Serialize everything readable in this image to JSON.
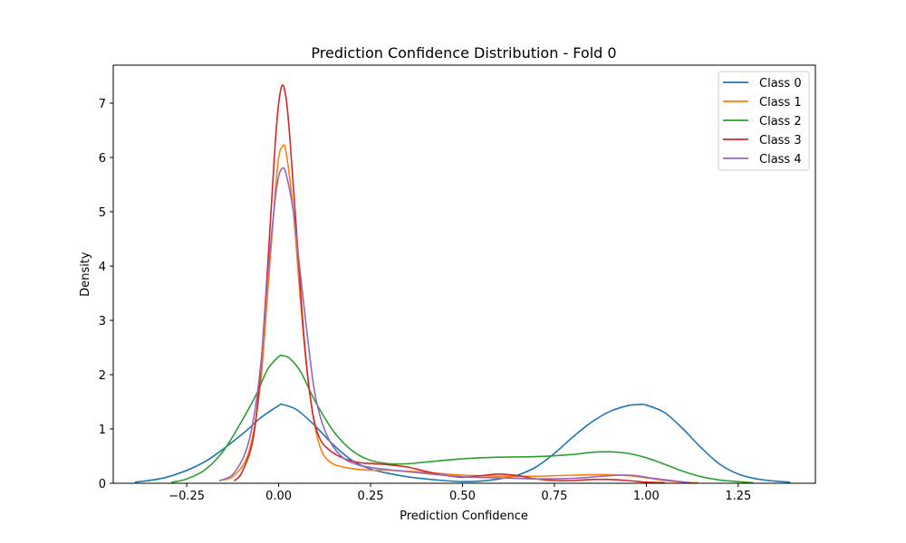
{
  "chart_data": {
    "type": "line",
    "title": "Prediction Confidence Distribution - Fold 0",
    "xlabel": "Prediction Confidence",
    "ylabel": "Density",
    "xlim": [
      -0.45,
      1.46
    ],
    "ylim": [
      0,
      7.7
    ],
    "xticks": [
      -0.25,
      0.0,
      0.25,
      0.5,
      0.75,
      1.0,
      1.25
    ],
    "xtick_labels": [
      "−0.25",
      "0.00",
      "0.25",
      "0.50",
      "0.75",
      "1.00",
      "1.25"
    ],
    "yticks": [
      0,
      1,
      2,
      3,
      4,
      5,
      6,
      7
    ],
    "ytick_labels": [
      "0",
      "1",
      "2",
      "3",
      "4",
      "5",
      "6",
      "7"
    ],
    "grid": false,
    "legend_position": "top-right",
    "series": [
      {
        "name": "Class 0",
        "color": "#1f77b4",
        "points": [
          [
            -0.39,
            0.02
          ],
          [
            -0.3,
            0.12
          ],
          [
            -0.2,
            0.4
          ],
          [
            -0.1,
            0.9
          ],
          [
            -0.05,
            1.2
          ],
          [
            0.0,
            1.43
          ],
          [
            0.01,
            1.45
          ],
          [
            0.05,
            1.35
          ],
          [
            0.1,
            1.05
          ],
          [
            0.15,
            0.7
          ],
          [
            0.2,
            0.42
          ],
          [
            0.25,
            0.26
          ],
          [
            0.3,
            0.18
          ],
          [
            0.35,
            0.12
          ],
          [
            0.4,
            0.08
          ],
          [
            0.45,
            0.05
          ],
          [
            0.5,
            0.03
          ],
          [
            0.55,
            0.04
          ],
          [
            0.6,
            0.08
          ],
          [
            0.65,
            0.15
          ],
          [
            0.7,
            0.3
          ],
          [
            0.75,
            0.55
          ],
          [
            0.8,
            0.85
          ],
          [
            0.85,
            1.12
          ],
          [
            0.9,
            1.32
          ],
          [
            0.95,
            1.43
          ],
          [
            0.98,
            1.45
          ],
          [
            1.0,
            1.44
          ],
          [
            1.05,
            1.3
          ],
          [
            1.1,
            1.0
          ],
          [
            1.15,
            0.65
          ],
          [
            1.2,
            0.35
          ],
          [
            1.25,
            0.17
          ],
          [
            1.3,
            0.08
          ],
          [
            1.35,
            0.04
          ],
          [
            1.39,
            0.02
          ]
        ]
      },
      {
        "name": "Class 1",
        "color": "#ff7f0e",
        "points": [
          [
            -0.16,
            0.05
          ],
          [
            -0.12,
            0.15
          ],
          [
            -0.08,
            0.6
          ],
          [
            -0.05,
            1.8
          ],
          [
            -0.03,
            3.5
          ],
          [
            -0.01,
            5.3
          ],
          [
            0.0,
            6.0
          ],
          [
            0.01,
            6.2
          ],
          [
            0.02,
            6.1
          ],
          [
            0.04,
            5.0
          ],
          [
            0.06,
            3.3
          ],
          [
            0.08,
            1.9
          ],
          [
            0.1,
            1.0
          ],
          [
            0.12,
            0.55
          ],
          [
            0.15,
            0.35
          ],
          [
            0.2,
            0.27
          ],
          [
            0.25,
            0.24
          ],
          [
            0.3,
            0.24
          ],
          [
            0.4,
            0.2
          ],
          [
            0.5,
            0.15
          ],
          [
            0.6,
            0.13
          ],
          [
            0.7,
            0.13
          ],
          [
            0.8,
            0.15
          ],
          [
            0.88,
            0.16
          ],
          [
            0.95,
            0.14
          ],
          [
            1.0,
            0.1
          ],
          [
            1.05,
            0.05
          ],
          [
            1.1,
            0.02
          ],
          [
            1.14,
            0.01
          ]
        ]
      },
      {
        "name": "Class 2",
        "color": "#2ca02c",
        "points": [
          [
            -0.29,
            0.02
          ],
          [
            -0.25,
            0.08
          ],
          [
            -0.2,
            0.25
          ],
          [
            -0.15,
            0.6
          ],
          [
            -0.1,
            1.15
          ],
          [
            -0.06,
            1.65
          ],
          [
            -0.03,
            2.1
          ],
          [
            0.0,
            2.33
          ],
          [
            0.01,
            2.35
          ],
          [
            0.03,
            2.3
          ],
          [
            0.06,
            2.05
          ],
          [
            0.1,
            1.5
          ],
          [
            0.15,
            0.95
          ],
          [
            0.2,
            0.6
          ],
          [
            0.25,
            0.42
          ],
          [
            0.3,
            0.36
          ],
          [
            0.35,
            0.36
          ],
          [
            0.4,
            0.39
          ],
          [
            0.5,
            0.45
          ],
          [
            0.6,
            0.48
          ],
          [
            0.7,
            0.49
          ],
          [
            0.8,
            0.53
          ],
          [
            0.85,
            0.57
          ],
          [
            0.9,
            0.58
          ],
          [
            0.95,
            0.55
          ],
          [
            1.0,
            0.47
          ],
          [
            1.05,
            0.35
          ],
          [
            1.1,
            0.22
          ],
          [
            1.15,
            0.12
          ],
          [
            1.2,
            0.06
          ],
          [
            1.25,
            0.03
          ],
          [
            1.29,
            0.01
          ]
        ]
      },
      {
        "name": "Class 3",
        "color": "#d62728",
        "points": [
          [
            -0.12,
            0.05
          ],
          [
            -0.1,
            0.2
          ],
          [
            -0.07,
            0.8
          ],
          [
            -0.05,
            2.0
          ],
          [
            -0.03,
            4.0
          ],
          [
            -0.01,
            6.2
          ],
          [
            0.0,
            7.0
          ],
          [
            0.01,
            7.33
          ],
          [
            0.02,
            7.1
          ],
          [
            0.03,
            6.4
          ],
          [
            0.05,
            4.5
          ],
          [
            0.07,
            2.6
          ],
          [
            0.09,
            1.4
          ],
          [
            0.11,
            0.85
          ],
          [
            0.14,
            0.6
          ],
          [
            0.18,
            0.45
          ],
          [
            0.22,
            0.38
          ],
          [
            0.26,
            0.36
          ],
          [
            0.3,
            0.34
          ],
          [
            0.35,
            0.3
          ],
          [
            0.4,
            0.22
          ],
          [
            0.45,
            0.15
          ],
          [
            0.5,
            0.11
          ],
          [
            0.55,
            0.14
          ],
          [
            0.6,
            0.17
          ],
          [
            0.65,
            0.14
          ],
          [
            0.7,
            0.08
          ],
          [
            0.75,
            0.05
          ],
          [
            0.8,
            0.05
          ],
          [
            0.85,
            0.07
          ],
          [
            0.9,
            0.07
          ],
          [
            0.95,
            0.05
          ],
          [
            1.0,
            0.02
          ],
          [
            1.05,
            0.01
          ]
        ]
      },
      {
        "name": "Class 4",
        "color": "#9467bd",
        "points": [
          [
            -0.16,
            0.05
          ],
          [
            -0.12,
            0.2
          ],
          [
            -0.08,
            0.8
          ],
          [
            -0.05,
            2.1
          ],
          [
            -0.03,
            3.8
          ],
          [
            -0.01,
            5.2
          ],
          [
            0.0,
            5.65
          ],
          [
            0.01,
            5.8
          ],
          [
            0.02,
            5.7
          ],
          [
            0.04,
            5.0
          ],
          [
            0.06,
            3.8
          ],
          [
            0.08,
            2.6
          ],
          [
            0.1,
            1.6
          ],
          [
            0.13,
            0.9
          ],
          [
            0.17,
            0.5
          ],
          [
            0.22,
            0.33
          ],
          [
            0.3,
            0.25
          ],
          [
            0.4,
            0.18
          ],
          [
            0.5,
            0.12
          ],
          [
            0.6,
            0.1
          ],
          [
            0.7,
            0.08
          ],
          [
            0.8,
            0.09
          ],
          [
            0.88,
            0.13
          ],
          [
            0.93,
            0.15
          ],
          [
            0.97,
            0.14
          ],
          [
            1.02,
            0.09
          ],
          [
            1.08,
            0.04
          ],
          [
            1.12,
            0.01
          ]
        ]
      }
    ]
  }
}
